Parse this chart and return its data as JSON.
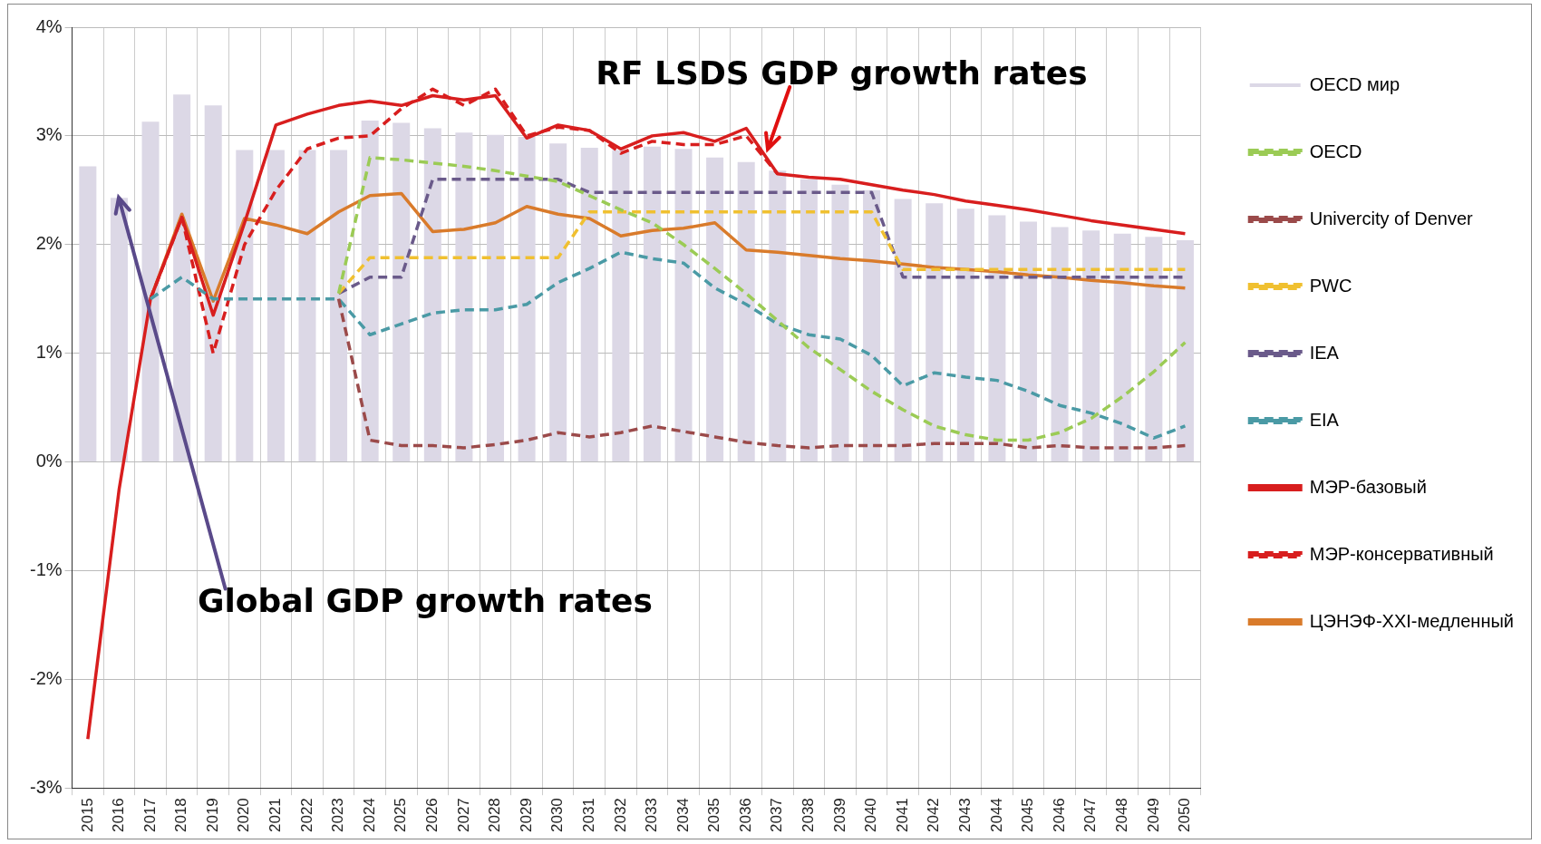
{
  "chart_data": {
    "type": "line",
    "categories": [
      "2015",
      "2016",
      "2017",
      "2018",
      "2019",
      "2020",
      "2021",
      "2022",
      "2023",
      "2024",
      "2025",
      "2026",
      "2027",
      "2028",
      "2029",
      "2030",
      "2031",
      "2032",
      "2033",
      "2034",
      "2035",
      "2036",
      "2037",
      "2038",
      "2039",
      "2040",
      "2041",
      "2042",
      "2043",
      "2044",
      "2045",
      "2046",
      "2047",
      "2048",
      "2049",
      "2050"
    ],
    "series": [
      {
        "name": "OECD мир",
        "type": "bar",
        "color": "#dcd8e6",
        "values": [
          2.72,
          2.43,
          3.13,
          3.38,
          3.28,
          2.87,
          2.87,
          2.87,
          2.87,
          3.14,
          3.12,
          3.07,
          3.03,
          3.01,
          2.99,
          2.93,
          2.89,
          2.87,
          2.9,
          2.88,
          2.8,
          2.76,
          2.68,
          2.6,
          2.55,
          2.5,
          2.42,
          2.38,
          2.33,
          2.27,
          2.21,
          2.16,
          2.13,
          2.1,
          2.07,
          2.04
        ]
      },
      {
        "name": "OECD",
        "line_style": "dashed",
        "color": "#9bcb55",
        "values": [
          null,
          null,
          null,
          null,
          null,
          null,
          null,
          null,
          1.55,
          2.8,
          2.78,
          2.75,
          2.72,
          2.68,
          2.63,
          2.58,
          2.45,
          2.32,
          2.2,
          2.0,
          1.78,
          1.55,
          1.3,
          1.05,
          0.85,
          0.65,
          0.48,
          0.33,
          0.25,
          0.2,
          0.2,
          0.27,
          0.4,
          0.6,
          0.83,
          1.1
        ]
      },
      {
        "name": "Univercity of Denver",
        "line_style": "dashed",
        "color": "#9b4a4a",
        "values": [
          null,
          null,
          null,
          null,
          null,
          null,
          null,
          null,
          1.5,
          0.2,
          0.15,
          0.15,
          0.13,
          0.16,
          0.2,
          0.27,
          0.23,
          0.27,
          0.33,
          0.28,
          0.23,
          0.18,
          0.15,
          0.13,
          0.15,
          0.15,
          0.15,
          0.17,
          0.17,
          0.17,
          0.13,
          0.15,
          0.13,
          0.13,
          0.13,
          0.15
        ]
      },
      {
        "name": "PWC",
        "line_style": "dashed",
        "color": "#f0c030",
        "values": [
          null,
          null,
          null,
          null,
          null,
          null,
          null,
          null,
          1.55,
          1.88,
          1.88,
          1.88,
          1.88,
          1.88,
          1.88,
          1.88,
          2.3,
          2.3,
          2.3,
          2.3,
          2.3,
          2.3,
          2.3,
          2.3,
          2.3,
          2.3,
          1.77,
          1.77,
          1.77,
          1.77,
          1.77,
          1.77,
          1.77,
          1.77,
          1.77,
          1.77
        ]
      },
      {
        "name": "IEA",
        "line_style": "dashed",
        "color": "#6a5a8a",
        "values": [
          null,
          null,
          null,
          null,
          null,
          null,
          null,
          null,
          1.55,
          1.7,
          1.7,
          2.6,
          2.6,
          2.6,
          2.6,
          2.6,
          2.48,
          2.48,
          2.48,
          2.48,
          2.48,
          2.48,
          2.48,
          2.48,
          2.48,
          2.48,
          1.7,
          1.7,
          1.7,
          1.7,
          1.7,
          1.7,
          1.7,
          1.7,
          1.7,
          1.7
        ]
      },
      {
        "name": "EIA",
        "line_style": "dashed",
        "color": "#4a9aa5",
        "values": [
          null,
          null,
          1.5,
          1.7,
          1.5,
          1.5,
          1.5,
          1.5,
          1.5,
          1.17,
          1.27,
          1.37,
          1.4,
          1.4,
          1.45,
          1.65,
          1.78,
          1.93,
          1.87,
          1.83,
          1.6,
          1.45,
          1.27,
          1.17,
          1.13,
          0.98,
          0.7,
          0.82,
          0.78,
          0.75,
          0.65,
          0.52,
          0.45,
          0.35,
          0.22,
          0.33
        ]
      },
      {
        "name": "МЭР-базовый",
        "line_style": "solid",
        "color": "#d81e1e",
        "values": [
          -2.55,
          -0.25,
          1.5,
          2.25,
          1.35,
          2.2,
          3.1,
          3.2,
          3.28,
          3.32,
          3.28,
          3.37,
          3.33,
          3.37,
          2.98,
          3.1,
          3.05,
          2.88,
          3.0,
          3.03,
          2.95,
          3.07,
          2.65,
          2.62,
          2.6,
          2.55,
          2.5,
          2.46,
          2.4,
          2.36,
          2.32,
          2.27,
          2.22,
          2.18,
          2.14,
          2.1
        ]
      },
      {
        "name": "МЭР-консервативный",
        "line_style": "dashed",
        "color": "#d81e1e",
        "values": [
          null,
          null,
          1.5,
          2.25,
          1.0,
          2.0,
          2.5,
          2.88,
          2.98,
          3.0,
          3.25,
          3.43,
          3.28,
          3.43,
          3.0,
          3.08,
          3.05,
          2.84,
          2.95,
          2.92,
          2.92,
          3.0,
          2.65,
          null,
          null,
          null,
          null,
          null,
          null,
          null,
          null,
          null,
          null,
          null,
          null,
          null
        ]
      },
      {
        "name": "ЦЭНЭФ-XXI-медленный",
        "line_style": "solid",
        "color": "#d97b2b",
        "values": [
          null,
          null,
          1.5,
          2.28,
          1.48,
          2.24,
          2.18,
          2.1,
          2.3,
          2.45,
          2.47,
          2.12,
          2.14,
          2.2,
          2.35,
          2.28,
          2.24,
          2.08,
          2.13,
          2.15,
          2.2,
          1.95,
          1.93,
          1.9,
          1.87,
          1.85,
          1.82,
          1.79,
          1.77,
          1.75,
          1.72,
          1.7,
          1.67,
          1.65,
          1.62,
          1.6
        ]
      }
    ],
    "ylim": [
      -3,
      4
    ],
    "yticks": [
      {
        "value": -3,
        "label": "-3%"
      },
      {
        "value": -2,
        "label": "-2%"
      },
      {
        "value": -1,
        "label": "-1%"
      },
      {
        "value": 0,
        "label": "0%"
      },
      {
        "value": 1,
        "label": "1%"
      },
      {
        "value": 2,
        "label": "2%"
      },
      {
        "value": 3,
        "label": "3%"
      },
      {
        "value": 4,
        "label": "4%"
      }
    ],
    "grid": true,
    "legend": "right",
    "marker": "none",
    "annotations": [
      {
        "text": "RF LSDS GDP growth rates",
        "x": "2037",
        "y": 2.65
      },
      {
        "text": "Global GDP growth rates",
        "x": "2016",
        "y": 2.43
      }
    ]
  }
}
